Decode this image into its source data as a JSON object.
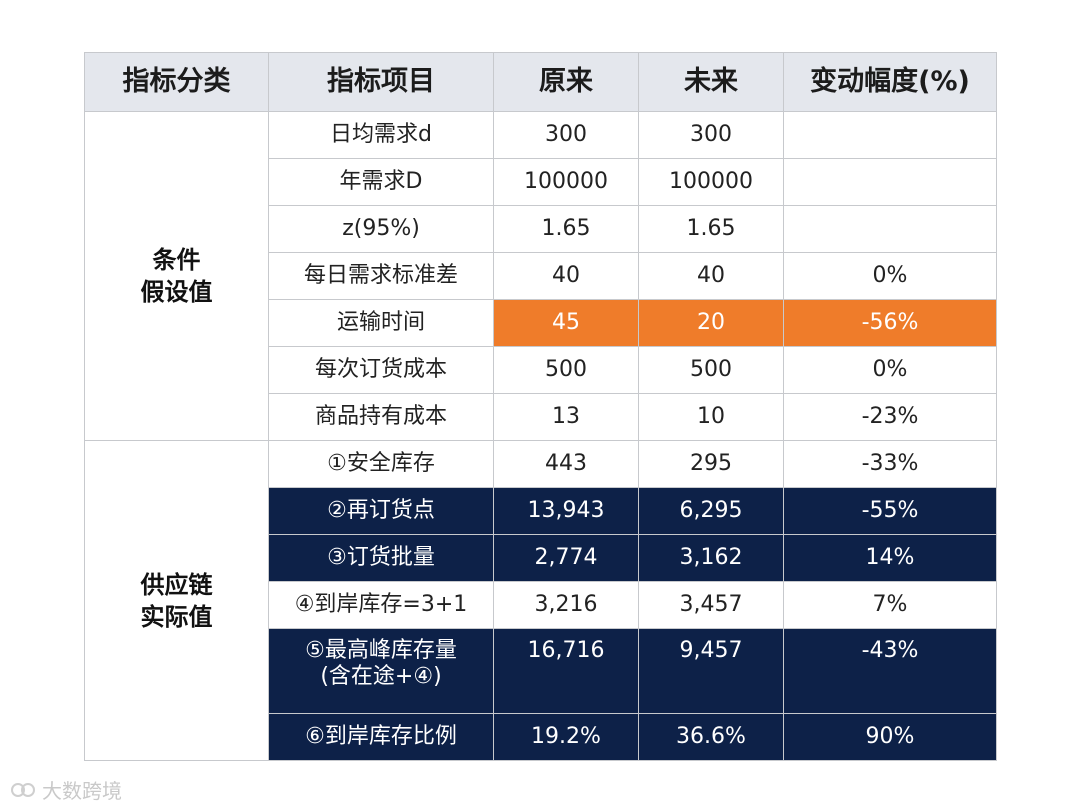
{
  "headers": [
    "指标分类",
    "指标项目",
    "原来",
    "未来",
    "变动幅度(%)"
  ],
  "categories": {
    "assumptions": [
      "条件",
      "假设值"
    ],
    "actuals": [
      "供应链",
      "实际值"
    ]
  },
  "rows": [
    {
      "item": "日均需求d",
      "before": "300",
      "after": "300",
      "change": ""
    },
    {
      "item": "年需求D",
      "before": "100000",
      "after": "100000",
      "change": ""
    },
    {
      "item": "z(95%)",
      "before": "1.65",
      "after": "1.65",
      "change": ""
    },
    {
      "item": "每日需求标准差",
      "before": "40",
      "after": "40",
      "change": "0%"
    },
    {
      "item": "运输时间",
      "before": "45",
      "after": "20",
      "change": "-56%"
    },
    {
      "item": "每次订货成本",
      "before": "500",
      "after": "500",
      "change": "0%"
    },
    {
      "item": "商品持有成本",
      "before": "13",
      "after": "10",
      "change": "-23%"
    },
    {
      "item": "①安全库存",
      "before": "443",
      "after": "295",
      "change": "-33%"
    },
    {
      "item": "②再订货点",
      "before": "13,943",
      "after": "6,295",
      "change": "-55%"
    },
    {
      "item": "③订货批量",
      "before": "2,774",
      "after": "3,162",
      "change": "14%"
    },
    {
      "item": "④到岸库存=3+1",
      "before": "3,216",
      "after": "3,457",
      "change": "7%"
    },
    {
      "item": "⑤最高峰库存量",
      "item_line2": "(含在途+④)",
      "before": "16,716",
      "after": "9,457",
      "change": "-43%"
    },
    {
      "item": "⑥到岸库存比例",
      "before": "19.2%",
      "after": "36.6%",
      "change": "90%"
    }
  ],
  "colors": {
    "highlight_orange": "#ef7c2a",
    "dark_navy": "#0d2148",
    "header_bg": "#e4e7ed"
  },
  "watermark": "大数跨境"
}
